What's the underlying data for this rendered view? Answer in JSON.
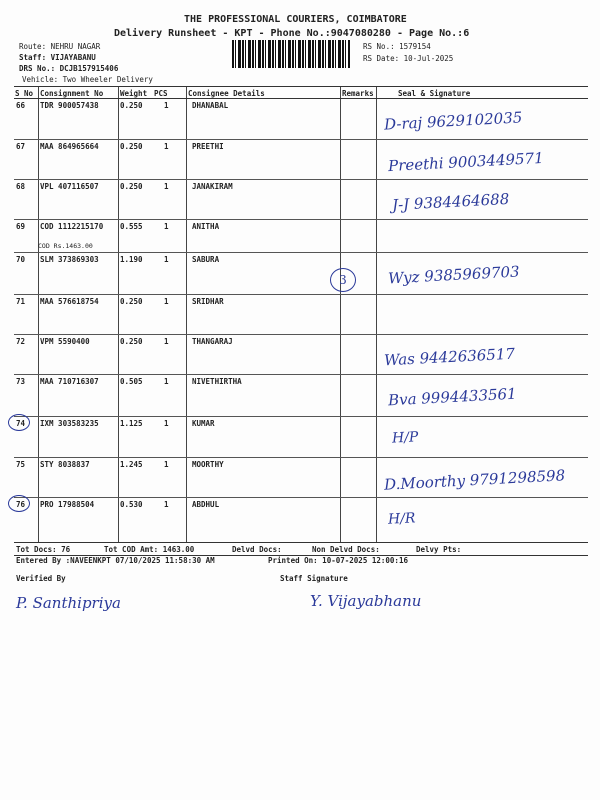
{
  "header": {
    "company": "THE PROFESSIONAL COURIERS, COIMBATORE",
    "subtitle": "Delivery Runsheet - KPT - Phone No.:9047080280 - Page No.:6",
    "route": "Route: NEHRU NAGAR",
    "staff": "Staff: VIJAYABANU",
    "drs": "DRS No.: DCJB157915406",
    "vehicle": "Vehicle: Two Wheeler Delivery",
    "rs_no": "RS No.: 1579154",
    "rs_date": "RS Date: 10-Jul-2025"
  },
  "columns": [
    "S No",
    "Consignment No",
    "Weight",
    "PCS",
    "Consignee Details",
    "Remarks",
    "Seal & Signature"
  ],
  "rows": [
    {
      "sno": "66",
      "cons": "TDR 900057438",
      "wt": "0.250",
      "pcs": "1",
      "name": "DHANABAL",
      "note": "",
      "hw": "D-raj 9629102035"
    },
    {
      "sno": "67",
      "cons": "MAA 864965664",
      "wt": "0.250",
      "pcs": "1",
      "name": "PREETHI",
      "note": "",
      "hw": "Preethi 9003449571"
    },
    {
      "sno": "68",
      "cons": "VPL 407116507",
      "wt": "0.250",
      "pcs": "1",
      "name": "JANAKIRAM",
      "note": "",
      "hw": "J-J 9384464688"
    },
    {
      "sno": "69",
      "cons": "COD 1112215170",
      "wt": "0.555",
      "pcs": "1",
      "name": "ANITHA",
      "note": "COD Rs.1463.00",
      "hw": ""
    },
    {
      "sno": "70",
      "cons": "SLM 373869303",
      "wt": "1.190",
      "pcs": "1",
      "name": "SABURA",
      "note": "",
      "hw": "Wyz 9385969703"
    },
    {
      "sno": "71",
      "cons": "MAA 576618754",
      "wt": "0.250",
      "pcs": "1",
      "name": "SRIDHAR",
      "note": "",
      "hw": ""
    },
    {
      "sno": "72",
      "cons": "VPM 5590400",
      "wt": "0.250",
      "pcs": "1",
      "name": "THANGARAJ",
      "note": "",
      "hw": "Was 9442636517"
    },
    {
      "sno": "73",
      "cons": "MAA 710716307",
      "wt": "0.505",
      "pcs": "1",
      "name": "NIVETHIRTHA",
      "note": "",
      "hw": "Bva 9994433561"
    },
    {
      "sno": "74",
      "cons": "IXM 303583235",
      "wt": "1.125",
      "pcs": "1",
      "name": "KUMAR",
      "note": "",
      "hw": "H/P"
    },
    {
      "sno": "75",
      "cons": "STY 8038837",
      "wt": "1.245",
      "pcs": "1",
      "name": "MOORTHY",
      "note": "",
      "hw": "D.Moorthy 9791298598"
    },
    {
      "sno": "76",
      "cons": "PRO 17988504",
      "wt": "0.530",
      "pcs": "1",
      "name": "ABDHUL",
      "note": "",
      "hw": "H/R"
    }
  ],
  "remarks_mark": "3",
  "footer": {
    "tot_docs": "Tot Docs:  76",
    "tot_cod": "Tot COD Amt: 1463.00",
    "delvd": "Delvd Docs:",
    "non_delvd": "Non Delvd Docs:",
    "delvy_pts": "Delvy Pts:",
    "entered": "Entered By :NAVEENKPT 07/10/2025 11:58:30 AM",
    "printed": "Printed On: 10-07-2025 12:00:16",
    "verified": "Verified By",
    "staff_sig": "Staff Signature",
    "verified_sign": "P. Santhipriya",
    "staff_sign": "Y. Vijayabhanu"
  },
  "colors": {
    "ink": "#2b3a9a"
  }
}
